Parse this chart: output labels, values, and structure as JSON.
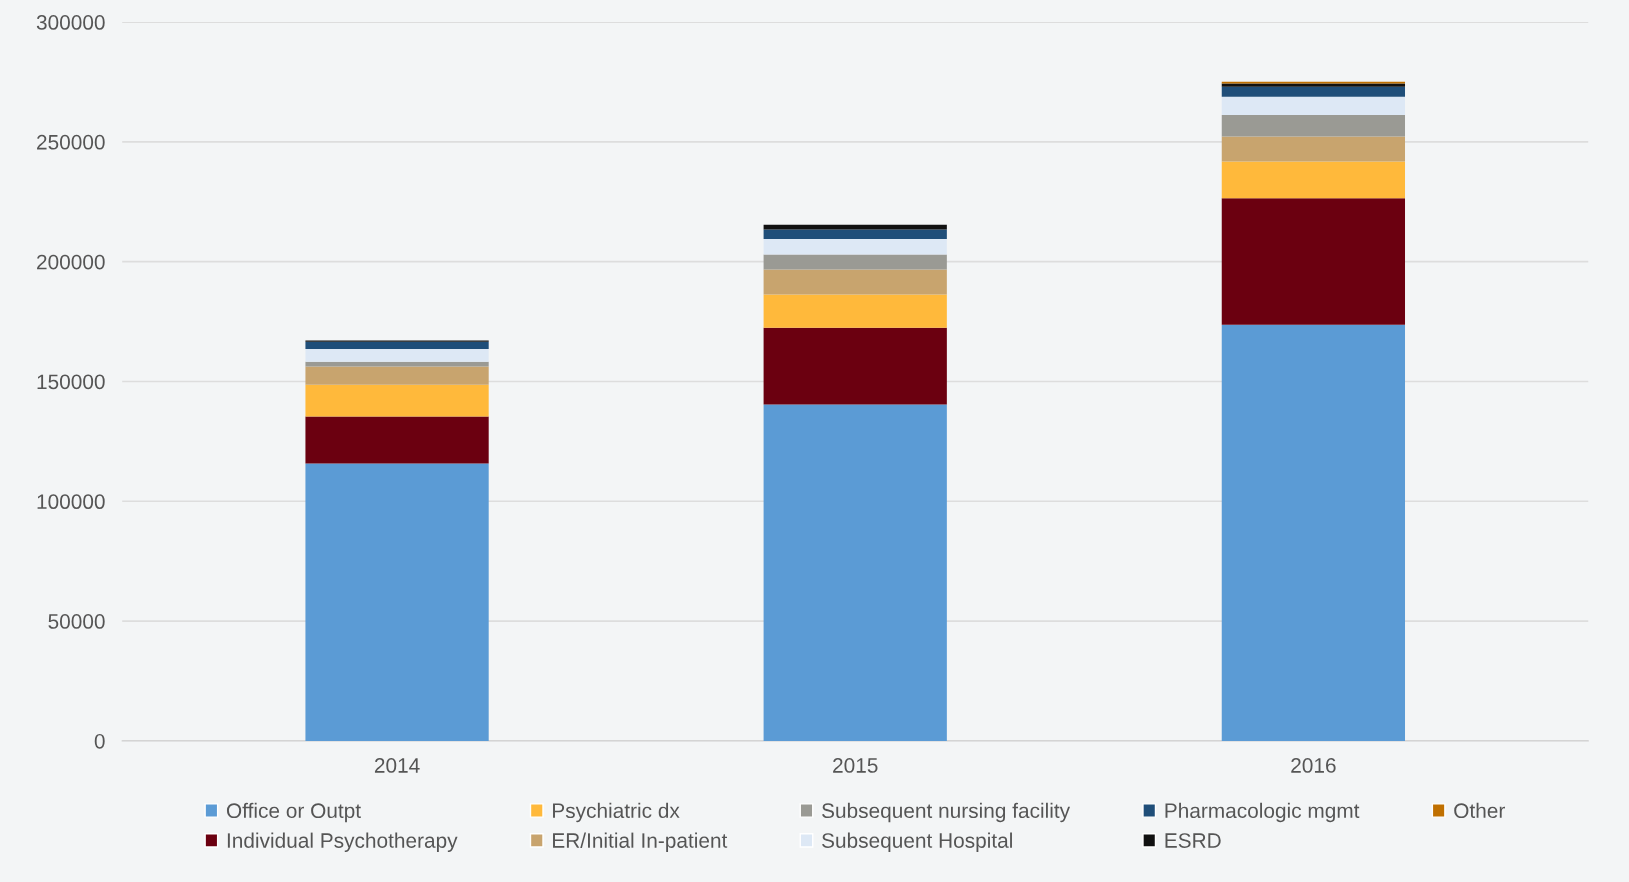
{
  "chart_data": {
    "type": "bar",
    "stacked": true,
    "categories": [
      "2014",
      "2015",
      "2016"
    ],
    "series": [
      {
        "name": "Office or Outpt",
        "color": "#5b9bd5",
        "values": [
          115800,
          140400,
          173700
        ]
      },
      {
        "name": "Individual Psychotherapy",
        "color": "#6b0010",
        "values": [
          19600,
          32000,
          52800
        ]
      },
      {
        "name": "Psychiatric dx",
        "color": "#ffb93b",
        "values": [
          13200,
          13900,
          15300
        ]
      },
      {
        "name": "ER/Initial In-patient",
        "color": "#c8a46e",
        "values": [
          7600,
          10400,
          10400
        ]
      },
      {
        "name": "Subsequent nursing facility",
        "color": "#9a9a94",
        "values": [
          2000,
          6300,
          9000
        ]
      },
      {
        "name": "Subsequent Hospital",
        "color": "#dde8f5",
        "values": [
          5400,
          6500,
          7600
        ]
      },
      {
        "name": "Pharmacologic mgmt",
        "color": "#1f4e79",
        "values": [
          3000,
          3900,
          4200
        ]
      },
      {
        "name": "ESRD",
        "color": "#111111",
        "values": [
          500,
          2000,
          1400
        ]
      },
      {
        "name": "Other",
        "color": "#c07000",
        "values": [
          0,
          0,
          700
        ]
      }
    ],
    "ylim": [
      0,
      300000
    ],
    "yticks": [
      0,
      50000,
      100000,
      150000,
      200000,
      250000,
      300000
    ],
    "grid": "y",
    "legend": "bottom"
  }
}
